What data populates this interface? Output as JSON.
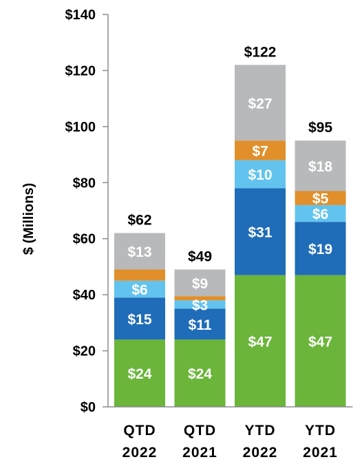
{
  "chart_data": {
    "type": "bar",
    "stacked": true,
    "ylabel": "$ (Millions)",
    "ylim": [
      0,
      140
    ],
    "yticks": [
      0,
      20,
      40,
      60,
      80,
      100,
      120,
      140
    ],
    "ytick_labels": [
      "$0",
      "$20",
      "$40",
      "$60",
      "$80",
      "$100",
      "$120",
      "$140"
    ],
    "grid": false,
    "categories": [
      {
        "line1": "QTD",
        "line2": "2022"
      },
      {
        "line1": "QTD",
        "line2": "2021"
      },
      {
        "line1": "YTD",
        "line2": "2022"
      },
      {
        "line1": "YTD",
        "line2": "2021"
      }
    ],
    "totals": [
      62,
      49,
      122,
      95
    ],
    "total_labels": [
      "$62",
      "$49",
      "$122",
      "$95"
    ],
    "series": [
      {
        "color": "#6ab53a",
        "values": [
          24,
          24,
          47,
          47
        ],
        "labels": [
          "$24",
          "$24",
          "$47",
          "$47"
        ]
      },
      {
        "color": "#1f6cb8",
        "values": [
          15,
          11,
          31,
          19
        ],
        "labels": [
          "$15",
          "$11",
          "$31",
          "$19"
        ]
      },
      {
        "color": "#62c3ee",
        "values": [
          6,
          3,
          10,
          6
        ],
        "labels": [
          "$6",
          "$3",
          "$10",
          "$6"
        ]
      },
      {
        "color": "#e08f2a",
        "values": [
          4,
          1.5,
          7,
          5
        ],
        "labels": [
          "",
          "",
          "$7",
          "$5"
        ]
      },
      {
        "color": "#b8b9bb",
        "values": [
          13,
          9.5,
          27,
          18
        ],
        "labels": [
          "$13",
          "$9",
          "$27",
          "$18"
        ]
      }
    ]
  }
}
